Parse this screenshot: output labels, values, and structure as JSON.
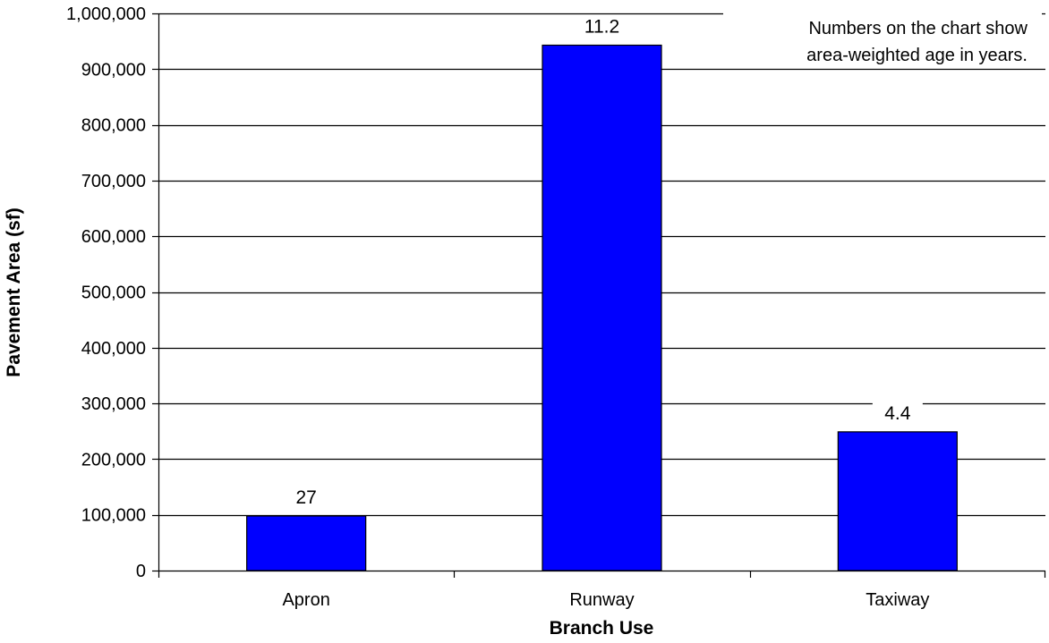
{
  "chart_data": {
    "type": "bar",
    "title": "",
    "xlabel": "Branch Use",
    "ylabel": "Pavement Area (sf)",
    "categories": [
      "Apron",
      "Runway",
      "Taxiway"
    ],
    "values": [
      98000,
      943000,
      249000
    ],
    "data_labels": [
      "27",
      "11.2",
      "4.4"
    ],
    "ylim": [
      0,
      1000000
    ],
    "yticks": [
      0,
      100000,
      200000,
      300000,
      400000,
      500000,
      600000,
      700000,
      800000,
      900000,
      1000000
    ],
    "ytick_labels": [
      "0",
      "100,000",
      "200,000",
      "300,000",
      "400,000",
      "500,000",
      "600,000",
      "700,000",
      "800,000",
      "900,000",
      "1,000,000"
    ],
    "grid": true,
    "legend": "none",
    "annotation": {
      "lines": [
        "Numbers on the chart show",
        "area-weighted age in years."
      ],
      "placement": "top-right"
    },
    "colors": {
      "bar_fill": "#0000ff",
      "bar_stroke": "#000000",
      "grid": "#000000"
    }
  }
}
